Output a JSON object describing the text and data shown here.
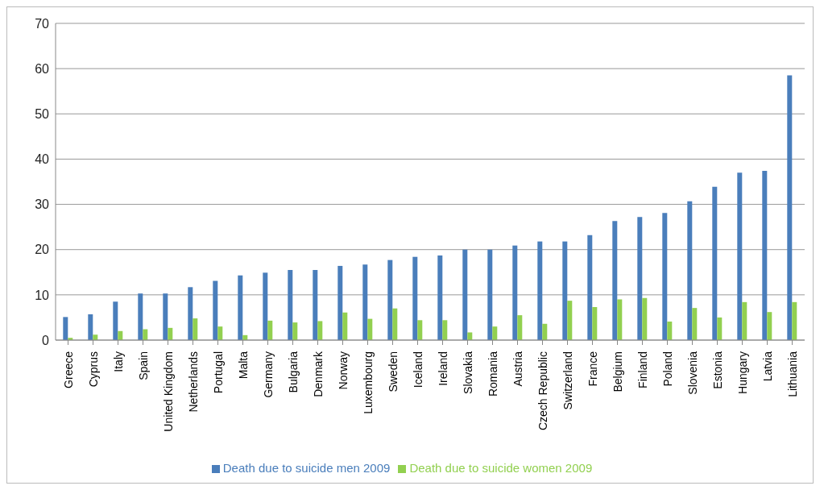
{
  "chart_data": {
    "type": "bar",
    "categories": [
      "Greece",
      "Cyprus",
      "Italy",
      "Spain",
      "United Kingdom",
      "Netherlands",
      "Portugal",
      "Malta",
      "Germany",
      "Bulgaria",
      "Denmark",
      "Norway",
      "Luxembourg",
      "Sweden",
      "Iceland",
      "Ireland",
      "Slovakia",
      "Romania",
      "Austria",
      "Czech Republic",
      "Switzerland",
      "France",
      "Belgium",
      "Finland",
      "Poland",
      "Slovenia",
      "Estonia",
      "Hungary",
      "Latvia",
      "Lithuania"
    ],
    "series": [
      {
        "name": "Death due to suicide men 2009",
        "color": "#4a7ebb",
        "values": [
          5.1,
          5.7,
          8.5,
          10.3,
          10.3,
          11.7,
          13.1,
          14.3,
          14.9,
          15.5,
          15.5,
          16.4,
          16.7,
          17.7,
          18.4,
          18.7,
          20.0,
          20.0,
          20.9,
          21.8,
          21.8,
          23.2,
          26.3,
          27.2,
          28.1,
          30.7,
          33.9,
          37.0,
          37.4,
          58.5
        ]
      },
      {
        "name": "Death due to suicide women 2009",
        "color": "#92d050",
        "values": [
          0.5,
          1.2,
          2.0,
          2.4,
          2.7,
          4.8,
          3.0,
          1.1,
          4.3,
          3.9,
          4.2,
          6.1,
          4.7,
          7.0,
          4.4,
          4.4,
          1.7,
          3.0,
          5.5,
          3.6,
          8.7,
          7.3,
          9.0,
          9.3,
          4.1,
          7.1,
          5.0,
          8.4,
          6.2,
          8.4
        ]
      }
    ],
    "ylim": [
      0,
      70
    ],
    "yticks": [
      0,
      10,
      20,
      30,
      40,
      50,
      60,
      70
    ],
    "grid": "y",
    "legend": "bottom"
  }
}
